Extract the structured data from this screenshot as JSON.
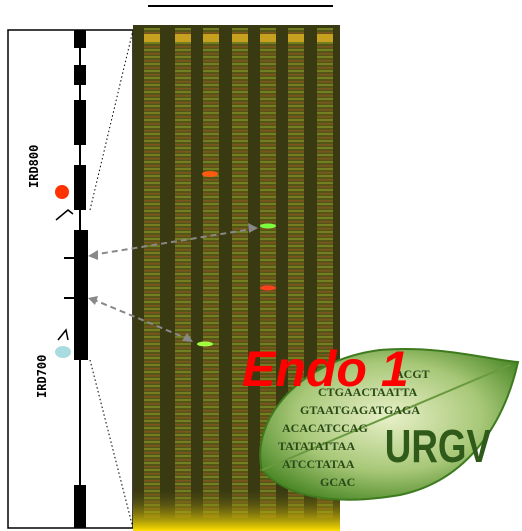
{
  "labels": {
    "ird800": "IRD800",
    "ird700": "IRD700"
  },
  "overlay": {
    "title": "Endo 1"
  },
  "logo": {
    "text": "URGV",
    "sequence": [
      "ACGT",
      "CTGAACTAATTA",
      "GTAATGAGATGAGA",
      "ACACATCCAG",
      "TATATATTAA",
      "ATCCTATAA",
      "GCAC"
    ]
  }
}
